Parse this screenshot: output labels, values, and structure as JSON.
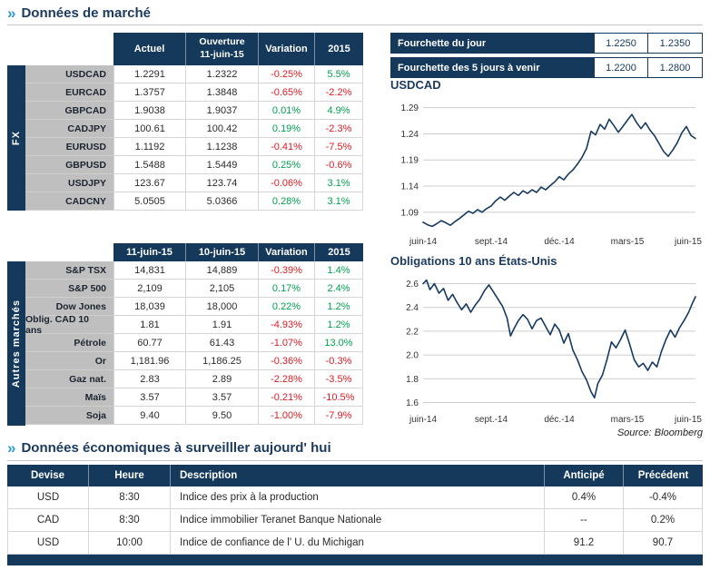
{
  "colors": {
    "navy": "#14395B",
    "negative": "#E01A22",
    "positive": "#00A14E",
    "accent_blue": "#2E9AD2",
    "label_gray": "#BFBFBF"
  },
  "section_market": {
    "chevron": "»",
    "title": "Données de marché"
  },
  "fx": {
    "group_label": "FX",
    "headers": {
      "actuel": "Actuel",
      "ouverture_line1": "Ouverture",
      "ouverture_line2": "11-juin-15",
      "variation": "Variation",
      "ytd": "2015"
    },
    "rows": [
      {
        "label": "USDCAD",
        "v1": "1.2291",
        "v2": "1.2322",
        "variation": "-0.25%",
        "ytd": "5.5%"
      },
      {
        "label": "EURCAD",
        "v1": "1.3757",
        "v2": "1.3848",
        "variation": "-0.65%",
        "ytd": "-2.2%"
      },
      {
        "label": "GBPCAD",
        "v1": "1.9038",
        "v2": "1.9037",
        "variation": "0.01%",
        "ytd": "4.9%"
      },
      {
        "label": "CADJPY",
        "v1": "100.61",
        "v2": "100.42",
        "variation": "0.19%",
        "ytd": "-2.3%"
      },
      {
        "label": "EURUSD",
        "v1": "1.1192",
        "v2": "1.1238",
        "variation": "-0.41%",
        "ytd": "-7.5%"
      },
      {
        "label": "GBPUSD",
        "v1": "1.5488",
        "v2": "1.5449",
        "variation": "0.25%",
        "ytd": "-0.6%"
      },
      {
        "label": "USDJPY",
        "v1": "123.67",
        "v2": "123.74",
        "variation": "-0.06%",
        "ytd": "3.1%"
      },
      {
        "label": "CADCNY",
        "v1": "5.0505",
        "v2": "5.0366",
        "variation": "0.28%",
        "ytd": "3.1%"
      }
    ]
  },
  "markets": {
    "group_label": "Autres marchés",
    "headers": {
      "col1": "11-juin-15",
      "col2": "10-juin-15",
      "variation": "Variation",
      "ytd": "2015"
    },
    "rows": [
      {
        "label": "S&P TSX",
        "v1": "14,831",
        "v2": "14,889",
        "variation": "-0.39%",
        "ytd": "1.4%"
      },
      {
        "label": "S&P 500",
        "v1": "2,109",
        "v2": "2,105",
        "variation": "0.17%",
        "ytd": "2.4%"
      },
      {
        "label": "Dow Jones",
        "v1": "18,039",
        "v2": "18,000",
        "variation": "0.22%",
        "ytd": "1.2%"
      },
      {
        "label": "Oblig. CAD 10 ans",
        "v1": "1.81",
        "v2": "1.91",
        "variation": "-4.93%",
        "ytd": "1.2%"
      },
      {
        "label": "Pétrole",
        "v1": "60.77",
        "v2": "61.43",
        "variation": "-1.07%",
        "ytd": "13.0%"
      },
      {
        "label": "Or",
        "v1": "1,181.96",
        "v2": "1,186.25",
        "variation": "-0.36%",
        "ytd": "-0.3%"
      },
      {
        "label": "Gaz nat.",
        "v1": "2.83",
        "v2": "2.89",
        "variation": "-2.28%",
        "ytd": "-3.5%"
      },
      {
        "label": "Maïs",
        "v1": "3.57",
        "v2": "3.57",
        "variation": "-0.21%",
        "ytd": "-10.5%"
      },
      {
        "label": "Soja",
        "v1": "9.40",
        "v2": "9.50",
        "variation": "-1.00%",
        "ytd": "-7.9%"
      }
    ]
  },
  "ranges": {
    "rows": [
      {
        "label": "Fourchette du jour",
        "low": "1.2250",
        "high": "1.2350"
      },
      {
        "label": "Fourchette des 5 jours à venir",
        "low": "1.2200",
        "high": "1.2800"
      }
    ]
  },
  "source": "Source: Bloomberg",
  "section_econ": {
    "chevron": "»",
    "title": "Données économiques à surveilller aujourd' hui"
  },
  "econ": {
    "headers": [
      "Devise",
      "Heure",
      "Description",
      "Anticipé",
      "Précédent"
    ],
    "rows": [
      {
        "devise": "USD",
        "heure": "8:30",
        "description": "Indice des prix à la production",
        "anticipe": "0.4%",
        "precedent": "-0.4%"
      },
      {
        "devise": "CAD",
        "heure": "8:30",
        "description": "Indice immobilier Teranet Banque Nationale",
        "anticipe": "--",
        "precedent": "0.2%"
      },
      {
        "devise": "USD",
        "heure": "10:00",
        "description": "Indice de confiance de l' U. du Michigan",
        "anticipe": "91.2",
        "precedent": "90.7"
      }
    ]
  },
  "chart_data": [
    {
      "type": "line",
      "title": "USDCAD",
      "xlim": [
        0,
        12
      ],
      "ylim": [
        1.055,
        1.305
      ],
      "x_ticks": [
        {
          "pos": 0,
          "label": "juin-14"
        },
        {
          "pos": 3,
          "label": "sept.-14"
        },
        {
          "pos": 6,
          "label": "déc.-14"
        },
        {
          "pos": 9,
          "label": "mars-15"
        },
        {
          "pos": 12,
          "label": "juin-15"
        }
      ],
      "y_ticks": [
        {
          "v": 1.29,
          "label": "1.29"
        },
        {
          "v": 1.24,
          "label": "1.24"
        },
        {
          "v": 1.19,
          "label": "1.19"
        },
        {
          "v": 1.14,
          "label": "1.14"
        },
        {
          "v": 1.09,
          "label": "1.09"
        }
      ],
      "grid": true,
      "legend": "none",
      "points": [
        [
          0,
          1.071
        ],
        [
          0.2,
          1.066
        ],
        [
          0.4,
          1.063
        ],
        [
          0.6,
          1.068
        ],
        [
          0.8,
          1.074
        ],
        [
          1.0,
          1.07
        ],
        [
          1.2,
          1.065
        ],
        [
          1.4,
          1.072
        ],
        [
          1.6,
          1.078
        ],
        [
          1.8,
          1.085
        ],
        [
          2.0,
          1.092
        ],
        [
          2.2,
          1.088
        ],
        [
          2.4,
          1.095
        ],
        [
          2.6,
          1.09
        ],
        [
          2.8,
          1.097
        ],
        [
          3.0,
          1.102
        ],
        [
          3.2,
          1.112
        ],
        [
          3.4,
          1.119
        ],
        [
          3.6,
          1.113
        ],
        [
          3.8,
          1.121
        ],
        [
          4.0,
          1.128
        ],
        [
          4.2,
          1.122
        ],
        [
          4.4,
          1.131
        ],
        [
          4.6,
          1.126
        ],
        [
          4.8,
          1.133
        ],
        [
          5.0,
          1.128
        ],
        [
          5.2,
          1.138
        ],
        [
          5.4,
          1.133
        ],
        [
          5.6,
          1.141
        ],
        [
          5.8,
          1.148
        ],
        [
          6.0,
          1.158
        ],
        [
          6.2,
          1.152
        ],
        [
          6.4,
          1.163
        ],
        [
          6.6,
          1.171
        ],
        [
          6.8,
          1.182
        ],
        [
          7.0,
          1.195
        ],
        [
          7.2,
          1.212
        ],
        [
          7.4,
          1.245
        ],
        [
          7.6,
          1.238
        ],
        [
          7.8,
          1.258
        ],
        [
          8.0,
          1.249
        ],
        [
          8.2,
          1.268
        ],
        [
          8.4,
          1.256
        ],
        [
          8.6,
          1.243
        ],
        [
          8.8,
          1.254
        ],
        [
          9.0,
          1.266
        ],
        [
          9.2,
          1.277
        ],
        [
          9.4,
          1.262
        ],
        [
          9.6,
          1.25
        ],
        [
          9.8,
          1.261
        ],
        [
          10.0,
          1.247
        ],
        [
          10.2,
          1.236
        ],
        [
          10.4,
          1.221
        ],
        [
          10.6,
          1.206
        ],
        [
          10.8,
          1.197
        ],
        [
          11.0,
          1.209
        ],
        [
          11.2,
          1.223
        ],
        [
          11.4,
          1.242
        ],
        [
          11.6,
          1.254
        ],
        [
          11.8,
          1.237
        ],
        [
          12.0,
          1.231
        ]
      ]
    },
    {
      "type": "line",
      "title": "Obligations 10 ans États-Unis",
      "xlim": [
        0,
        12
      ],
      "ylim": [
        1.55,
        2.65
      ],
      "x_ticks": [
        {
          "pos": 0,
          "label": "juin-14"
        },
        {
          "pos": 3,
          "label": "sept.-14"
        },
        {
          "pos": 6,
          "label": "déc.-14"
        },
        {
          "pos": 9,
          "label": "mars-15"
        },
        {
          "pos": 12,
          "label": "juin-15"
        }
      ],
      "y_ticks": [
        {
          "v": 2.6,
          "label": "2.6"
        },
        {
          "v": 2.4,
          "label": "2.4"
        },
        {
          "v": 2.2,
          "label": "2.2"
        },
        {
          "v": 2.0,
          "label": "2.0"
        },
        {
          "v": 1.8,
          "label": "1.8"
        },
        {
          "v": 1.6,
          "label": "1.6"
        }
      ],
      "grid": true,
      "legend": "none",
      "points": [
        [
          0,
          2.6
        ],
        [
          0.15,
          2.63
        ],
        [
          0.3,
          2.55
        ],
        [
          0.5,
          2.6
        ],
        [
          0.7,
          2.52
        ],
        [
          0.9,
          2.56
        ],
        [
          1.1,
          2.46
        ],
        [
          1.3,
          2.51
        ],
        [
          1.5,
          2.44
        ],
        [
          1.7,
          2.38
        ],
        [
          1.9,
          2.43
        ],
        [
          2.1,
          2.36
        ],
        [
          2.3,
          2.42
        ],
        [
          2.5,
          2.47
        ],
        [
          2.7,
          2.54
        ],
        [
          2.9,
          2.59
        ],
        [
          3.1,
          2.53
        ],
        [
          3.3,
          2.47
        ],
        [
          3.5,
          2.41
        ],
        [
          3.7,
          2.31
        ],
        [
          3.85,
          2.16
        ],
        [
          4.0,
          2.22
        ],
        [
          4.2,
          2.29
        ],
        [
          4.4,
          2.34
        ],
        [
          4.6,
          2.3
        ],
        [
          4.8,
          2.22
        ],
        [
          5.0,
          2.29
        ],
        [
          5.2,
          2.31
        ],
        [
          5.4,
          2.24
        ],
        [
          5.6,
          2.17
        ],
        [
          5.8,
          2.26
        ],
        [
          6.0,
          2.21
        ],
        [
          6.2,
          2.1
        ],
        [
          6.4,
          2.18
        ],
        [
          6.6,
          2.04
        ],
        [
          6.8,
          1.96
        ],
        [
          7.0,
          1.86
        ],
        [
          7.2,
          1.79
        ],
        [
          7.4,
          1.69
        ],
        [
          7.55,
          1.64
        ],
        [
          7.7,
          1.76
        ],
        [
          7.9,
          1.83
        ],
        [
          8.1,
          1.96
        ],
        [
          8.3,
          2.11
        ],
        [
          8.5,
          2.06
        ],
        [
          8.7,
          2.13
        ],
        [
          8.9,
          2.21
        ],
        [
          9.1,
          2.09
        ],
        [
          9.3,
          1.96
        ],
        [
          9.5,
          1.9
        ],
        [
          9.7,
          1.93
        ],
        [
          9.9,
          1.87
        ],
        [
          10.1,
          1.94
        ],
        [
          10.3,
          1.9
        ],
        [
          10.5,
          2.03
        ],
        [
          10.7,
          2.13
        ],
        [
          10.9,
          2.21
        ],
        [
          11.1,
          2.15
        ],
        [
          11.3,
          2.23
        ],
        [
          11.5,
          2.29
        ],
        [
          11.7,
          2.36
        ],
        [
          11.85,
          2.43
        ],
        [
          12.0,
          2.49
        ]
      ]
    }
  ]
}
